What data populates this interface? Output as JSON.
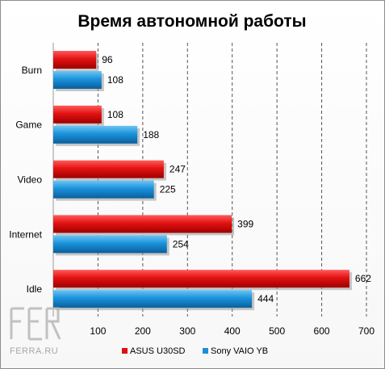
{
  "chart_data": {
    "type": "bar",
    "orientation": "horizontal",
    "title": "Время автономной работы",
    "categories": [
      "Burn",
      "Game",
      "Video",
      "Internet",
      "Idle"
    ],
    "series": [
      {
        "name": "ASUS U30SD",
        "values": [
          96,
          108,
          247,
          399,
          662
        ],
        "color": "#e01010"
      },
      {
        "name": "Sony VAIO YB",
        "values": [
          108,
          188,
          225,
          254,
          444
        ],
        "color": "#1a8fd8"
      }
    ],
    "xlim": [
      0,
      700
    ],
    "xticks": [
      100,
      200,
      300,
      400,
      500,
      600,
      700
    ],
    "grid": true,
    "legend_position": "bottom"
  },
  "watermark": {
    "text": "FERRA.RU"
  }
}
